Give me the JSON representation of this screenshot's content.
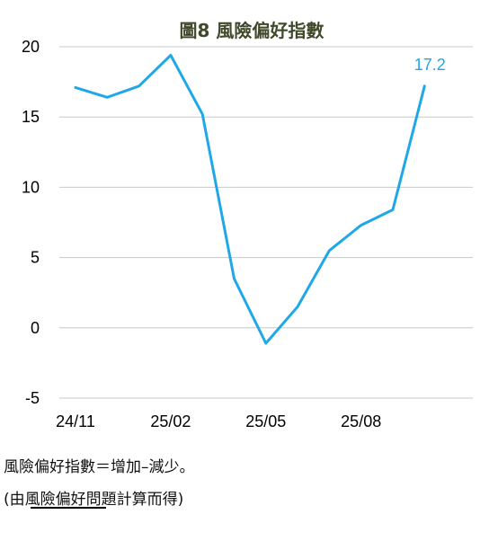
{
  "chart_data": {
    "type": "line",
    "title": "圖8  風險偏好指數",
    "x": [
      "24/11",
      "24/12",
      "25/01",
      "25/02",
      "25/03",
      "25/04",
      "25/05",
      "25/06",
      "25/07",
      "25/08",
      "25/09",
      "25/10"
    ],
    "x_tick_labels": [
      "24/11",
      "25/02",
      "25/05",
      "25/08"
    ],
    "series": [
      {
        "values": [
          17.1,
          16.4,
          17.2,
          19.4,
          15.2,
          3.5,
          -1.1,
          1.5,
          5.5,
          7.3,
          8.4,
          17.2
        ]
      }
    ],
    "last_value_label": "17.2",
    "ylim": [
      -5,
      20
    ],
    "yticks": [
      20,
      15,
      10,
      5,
      0,
      -5
    ],
    "grid": true,
    "line_color": "#1fa8e8",
    "label_color": "#1fa8e8",
    "title_color": "#3f4a2a"
  },
  "notes": {
    "definition": "風險偏好指數＝增加–減少。",
    "source_prefix": "(由",
    "source_underlined": "風險偏好",
    "source_suffix": "問題計算而得)"
  }
}
